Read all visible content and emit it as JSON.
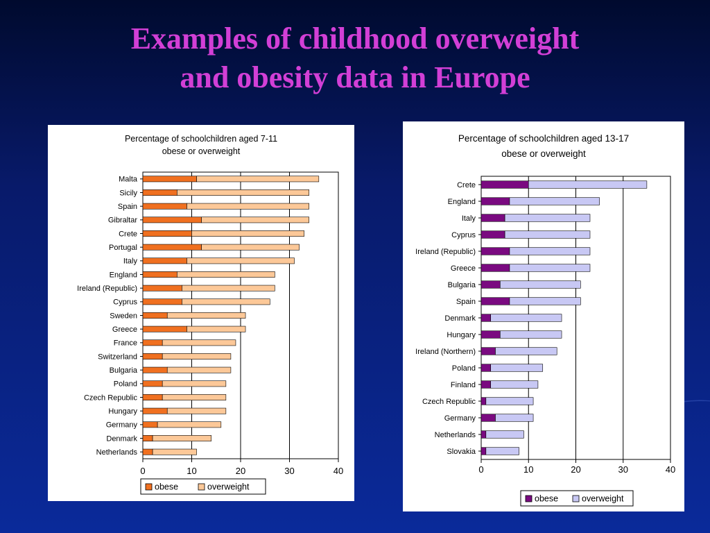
{
  "slide": {
    "title_line1": "Examples of childhood overweight",
    "title_line2": "and obesity data in Europe",
    "title_color": "#d23fd6"
  },
  "chart_data": [
    {
      "type": "bar",
      "orientation": "horizontal",
      "stacked": true,
      "title_line1": "Percentage of schoolchildren aged 7-11",
      "title_line2": "obese or overweight",
      "categories": [
        "Malta",
        "Sicily",
        "Spain",
        "Gibraltar",
        "Crete",
        "Portugal",
        "Italy",
        "England",
        "Ireland (Republic)",
        "Cyprus",
        "Sweden",
        "Greece",
        "France",
        "Switzerland",
        "Bulgaria",
        "Poland",
        "Czech Republic",
        "Hungary",
        "Germany",
        "Denmark",
        "Netherlands"
      ],
      "series": [
        {
          "name": "obese",
          "color": "#f07020",
          "values": [
            11,
            7,
            9,
            12,
            10,
            12,
            9,
            7,
            8,
            8,
            5,
            9,
            4,
            4,
            5,
            4,
            4,
            5,
            3,
            2,
            2
          ]
        },
        {
          "name": "overweight",
          "color": "#fcc898",
          "values": [
            25,
            27,
            25,
            22,
            23,
            20,
            22,
            20,
            19,
            18,
            16,
            12,
            15,
            14,
            13,
            13,
            13,
            12,
            13,
            12,
            9
          ]
        }
      ],
      "xlim": [
        0,
        40
      ],
      "xticks": [
        "0",
        "10",
        "20",
        "30",
        "40"
      ],
      "grid": "vertical",
      "legend_position": "bottom"
    },
    {
      "type": "bar",
      "orientation": "horizontal",
      "stacked": true,
      "title_line1": "Percentage of schoolchildren aged 13-17",
      "title_line2": "obese or overweight",
      "categories": [
        "Crete",
        "England",
        "Italy",
        "Cyprus",
        "Ireland (Republic)",
        "Greece",
        "Bulgaria",
        "Spain",
        "Denmark",
        "Hungary",
        "Ireland (Northern)",
        "Poland",
        "Finland",
        "Czech Republic",
        "Germany",
        "Netherlands",
        "Slovakia"
      ],
      "series": [
        {
          "name": "obese",
          "color": "#7a0a80",
          "values": [
            10,
            6,
            5,
            5,
            6,
            6,
            4,
            6,
            2,
            4,
            3,
            2,
            2,
            1,
            3,
            1,
            1
          ]
        },
        {
          "name": "overweight",
          "color": "#c8c8f4",
          "values": [
            25,
            19,
            18,
            18,
            17,
            17,
            17,
            15,
            15,
            13,
            13,
            11,
            10,
            10,
            8,
            8,
            7
          ]
        }
      ],
      "xlim": [
        0,
        40
      ],
      "xticks": [
        "0",
        "10",
        "20",
        "30",
        "40"
      ],
      "grid": "vertical",
      "legend_position": "bottom"
    }
  ]
}
